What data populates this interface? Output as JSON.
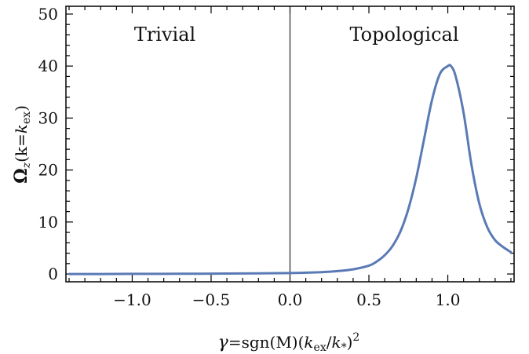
{
  "chart_data": {
    "type": "line",
    "xlabel": "γ=sgn(M)(k_ex/k_*)^2",
    "xlabel_parts": {
      "gamma": "γ",
      "eq": "=sgn(M)(",
      "k1": "k",
      "sub1": "ex",
      "slash": "/",
      "k2": "k",
      "sub2": "*",
      "close": ")",
      "sup": "2"
    },
    "ylabel": "Ω_z(k=k_ex)",
    "ylabel_parts": {
      "omega": "Ω",
      "omega_sub": "z",
      "open": "(k=",
      "k": "k",
      "k_sub": "ex",
      "close": ")"
    },
    "xlim": [
      -1.42,
      1.42
    ],
    "ylim": [
      -1.5,
      51.5
    ],
    "xticks": [
      -1.0,
      -0.5,
      0.0,
      0.5,
      1.0
    ],
    "xtick_labels": [
      "−1.0",
      "−0.5",
      "0.0",
      "0.5",
      "1.0"
    ],
    "yticks": [
      0,
      10,
      20,
      30,
      40,
      50
    ],
    "ytick_labels": [
      "0",
      "10",
      "20",
      "30",
      "40",
      "50"
    ],
    "annotations": [
      {
        "text": "Trivial"
      },
      {
        "text": "Topological"
      }
    ],
    "vline": 0.0,
    "colors": {
      "series": "#5a7ab5",
      "axes": "#000000",
      "vline": "#333333"
    },
    "series": [
      {
        "x": [
          -1.4,
          -1.2,
          -1.0,
          -0.8,
          -0.6,
          -0.4,
          -0.2,
          0.0,
          0.1,
          0.2,
          0.3,
          0.4,
          0.5,
          0.55,
          0.6,
          0.65,
          0.7,
          0.75,
          0.8,
          0.85,
          0.9,
          0.95,
          1.0,
          1.02,
          1.05,
          1.1,
          1.15,
          1.2,
          1.25,
          1.3,
          1.35,
          1.4
        ],
        "y": [
          0.0,
          0.0,
          0.02,
          0.03,
          0.05,
          0.08,
          0.12,
          0.18,
          0.25,
          0.35,
          0.55,
          0.9,
          1.6,
          2.4,
          3.6,
          5.4,
          8.2,
          12.5,
          18.5,
          26.0,
          33.5,
          38.5,
          40.0,
          40.0,
          38.0,
          31.0,
          21.0,
          13.5,
          9.0,
          6.5,
          5.2,
          4.2
        ]
      }
    ]
  }
}
